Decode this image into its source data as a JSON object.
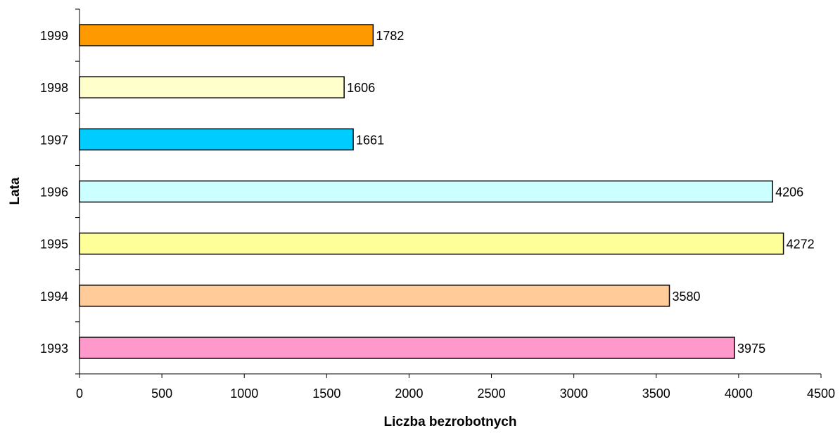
{
  "chart_data": {
    "type": "bar",
    "orientation": "horizontal",
    "categories": [
      "1993",
      "1994",
      "1995",
      "1996",
      "1997",
      "1998",
      "1999"
    ],
    "values": [
      3975,
      3580,
      4272,
      4206,
      1661,
      1606,
      1782
    ],
    "colors": [
      "#FF99CC",
      "#FFCC99",
      "#FFFF99",
      "#CCFFFF",
      "#00CCFF",
      "#FFFFCC",
      "#FF9900"
    ],
    "data_labels": [
      "3975",
      "3580",
      "4272",
      "4206",
      "1661",
      "1606",
      "1782"
    ],
    "xlabel": "Liczba bezrobotnych",
    "ylabel": "Lata",
    "xlim": [
      0,
      4500
    ],
    "xticks": [
      "0",
      "500",
      "1000",
      "1500",
      "2000",
      "2500",
      "3000",
      "3500",
      "4000",
      "4500"
    ],
    "grid": false,
    "legend": "none"
  }
}
